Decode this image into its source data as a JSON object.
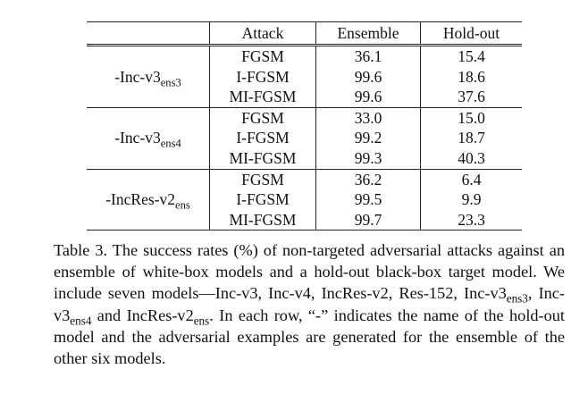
{
  "table": {
    "headers": [
      "",
      "Attack",
      "Ensemble",
      "Hold-out"
    ],
    "groups": [
      {
        "model_base": "-Inc-v3",
        "model_sub": "ens3",
        "rows": [
          {
            "attack": "FGSM",
            "ensemble": "36.1",
            "holdout": "15.4",
            "ensemble_bold": false,
            "holdout_bold": false
          },
          {
            "attack": "I-FGSM",
            "ensemble": "99.6",
            "holdout": "18.6",
            "ensemble_bold": true,
            "holdout_bold": false
          },
          {
            "attack": "MI-FGSM",
            "ensemble": "99.6",
            "holdout": "37.6",
            "ensemble_bold": true,
            "holdout_bold": true
          }
        ]
      },
      {
        "model_base": "-Inc-v3",
        "model_sub": "ens4",
        "rows": [
          {
            "attack": "FGSM",
            "ensemble": "33.0",
            "holdout": "15.0",
            "ensemble_bold": false,
            "holdout_bold": false
          },
          {
            "attack": "I-FGSM",
            "ensemble": "99.2",
            "holdout": "18.7",
            "ensemble_bold": false,
            "holdout_bold": false
          },
          {
            "attack": "MI-FGSM",
            "ensemble": "99.3",
            "holdout": "40.3",
            "ensemble_bold": true,
            "holdout_bold": true
          }
        ]
      },
      {
        "model_base": "-IncRes-v2",
        "model_sub": "ens",
        "rows": [
          {
            "attack": "FGSM",
            "ensemble": "36.2",
            "holdout": "6.4",
            "ensemble_bold": false,
            "holdout_bold": false
          },
          {
            "attack": "I-FGSM",
            "ensemble": "99.5",
            "holdout": "9.9",
            "ensemble_bold": false,
            "holdout_bold": false
          },
          {
            "attack": "MI-FGSM",
            "ensemble": "99.7",
            "holdout": "23.3",
            "ensemble_bold": true,
            "holdout_bold": true
          }
        ]
      }
    ]
  },
  "caption": {
    "segments": [
      {
        "t": "Table 3. The success rates (%) of non-targeted adversarial attacks against an ensemble of white-box models and a hold-out black-box target model. We include seven models—Inc-v3, Inc-v4, IncRes-v2, Res-152, Inc-v3"
      },
      {
        "t": "ens3",
        "sub": true
      },
      {
        "t": ", Inc-v3"
      },
      {
        "t": "ens4",
        "sub": true
      },
      {
        "t": " and IncRes-v2"
      },
      {
        "t": "ens",
        "sub": true
      },
      {
        "t": ". In each row, “-” indicates the name of the hold-out model and the adversarial examples are generated for the ensemble of the other six models."
      }
    ]
  }
}
